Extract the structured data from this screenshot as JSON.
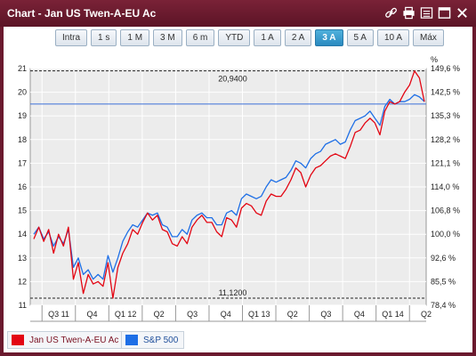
{
  "window": {
    "title": "Chart - Jan US Twen-A-EU Ac",
    "icons": [
      "link-icon",
      "print-icon",
      "list-icon",
      "maximize-icon",
      "close-icon"
    ]
  },
  "periods": [
    {
      "label": "Intra",
      "active": false
    },
    {
      "label": "1 s",
      "active": false
    },
    {
      "label": "1 M",
      "active": false
    },
    {
      "label": "3 M",
      "active": false
    },
    {
      "label": "6 m",
      "active": false
    },
    {
      "label": "YTD",
      "active": false
    },
    {
      "label": "1 A",
      "active": false
    },
    {
      "label": "2 A",
      "active": false
    },
    {
      "label": "3 A",
      "active": true
    },
    {
      "label": "5 A",
      "active": false
    },
    {
      "label": "10 A",
      "active": false
    },
    {
      "label": "Máx",
      "active": false
    }
  ],
  "chart_data": {
    "type": "line",
    "x_ticks": [
      "Q3 11",
      "Q4",
      "Q1 12",
      "Q2",
      "Q3",
      "Q4",
      "Q1 13",
      "Q2",
      "Q3",
      "Q4",
      "Q1 14",
      "Q2"
    ],
    "y_left_ticks": [
      "21",
      "20",
      "19",
      "18",
      "17",
      "16",
      "15",
      "14",
      "13",
      "12",
      "11"
    ],
    "y_left_range": [
      11,
      21
    ],
    "y_right_ticks": [
      "149,6 %",
      "142,5 %",
      "135,3 %",
      "128,2 %",
      "121,1 %",
      "114,0 %",
      "106,8 %",
      "100,0 %",
      "92,6 %",
      "85,5 %",
      "78,4 %"
    ],
    "y_right_unit": "%",
    "max_label": "20,9400",
    "min_label": "11,1200",
    "reference_line": 19.5,
    "grid": true,
    "series": [
      {
        "name": "Jan US Twen-A-EU Ac",
        "color": "#e30613",
        "values": [
          13.8,
          14.3,
          13.7,
          14.2,
          13.2,
          14.0,
          13.5,
          14.3,
          12.1,
          12.8,
          11.5,
          12.3,
          11.9,
          12.0,
          11.8,
          12.8,
          11.3,
          12.6,
          13.2,
          13.6,
          14.2,
          14.0,
          14.5,
          14.9,
          14.6,
          14.8,
          14.2,
          14.1,
          13.6,
          13.5,
          13.9,
          13.6,
          14.3,
          14.6,
          14.8,
          14.5,
          14.5,
          14.1,
          13.9,
          14.7,
          14.6,
          14.3,
          15.1,
          15.3,
          15.2,
          14.9,
          14.8,
          15.4,
          15.7,
          15.6,
          15.6,
          15.9,
          16.3,
          16.8,
          16.6,
          16.0,
          16.5,
          16.8,
          16.9,
          17.1,
          17.3,
          17.4,
          17.3,
          17.2,
          17.7,
          18.3,
          18.4,
          18.7,
          18.9,
          18.7,
          18.2,
          19.2,
          19.6,
          19.5,
          19.6,
          20.0,
          20.3,
          20.9,
          20.6,
          19.6
        ]
      },
      {
        "name": "S&P 500",
        "color": "#1e6fe6",
        "values": [
          14.0,
          14.3,
          13.8,
          14.1,
          13.5,
          13.9,
          13.6,
          14.2,
          12.6,
          13.0,
          12.3,
          12.5,
          12.1,
          12.3,
          12.1,
          13.1,
          12.4,
          13.0,
          13.7,
          14.1,
          14.4,
          14.3,
          14.6,
          14.9,
          14.8,
          14.9,
          14.4,
          14.3,
          13.9,
          13.9,
          14.2,
          14.0,
          14.6,
          14.8,
          14.9,
          14.7,
          14.7,
          14.4,
          14.4,
          14.9,
          15.0,
          14.8,
          15.5,
          15.7,
          15.6,
          15.5,
          15.6,
          16.0,
          16.3,
          16.2,
          16.3,
          16.4,
          16.7,
          17.1,
          17.0,
          16.8,
          17.2,
          17.4,
          17.5,
          17.8,
          17.9,
          18.0,
          17.8,
          17.9,
          18.4,
          18.8,
          18.9,
          19.0,
          19.2,
          18.9,
          18.6,
          19.4,
          19.7,
          19.5,
          19.6,
          19.6,
          19.7,
          19.9,
          19.8,
          19.6
        ]
      }
    ]
  },
  "legend": [
    {
      "label": "Jan US Twen-A-EU Ac",
      "color": "#e30613"
    },
    {
      "label": "S&P 500",
      "color": "#1e6fe6"
    }
  ]
}
